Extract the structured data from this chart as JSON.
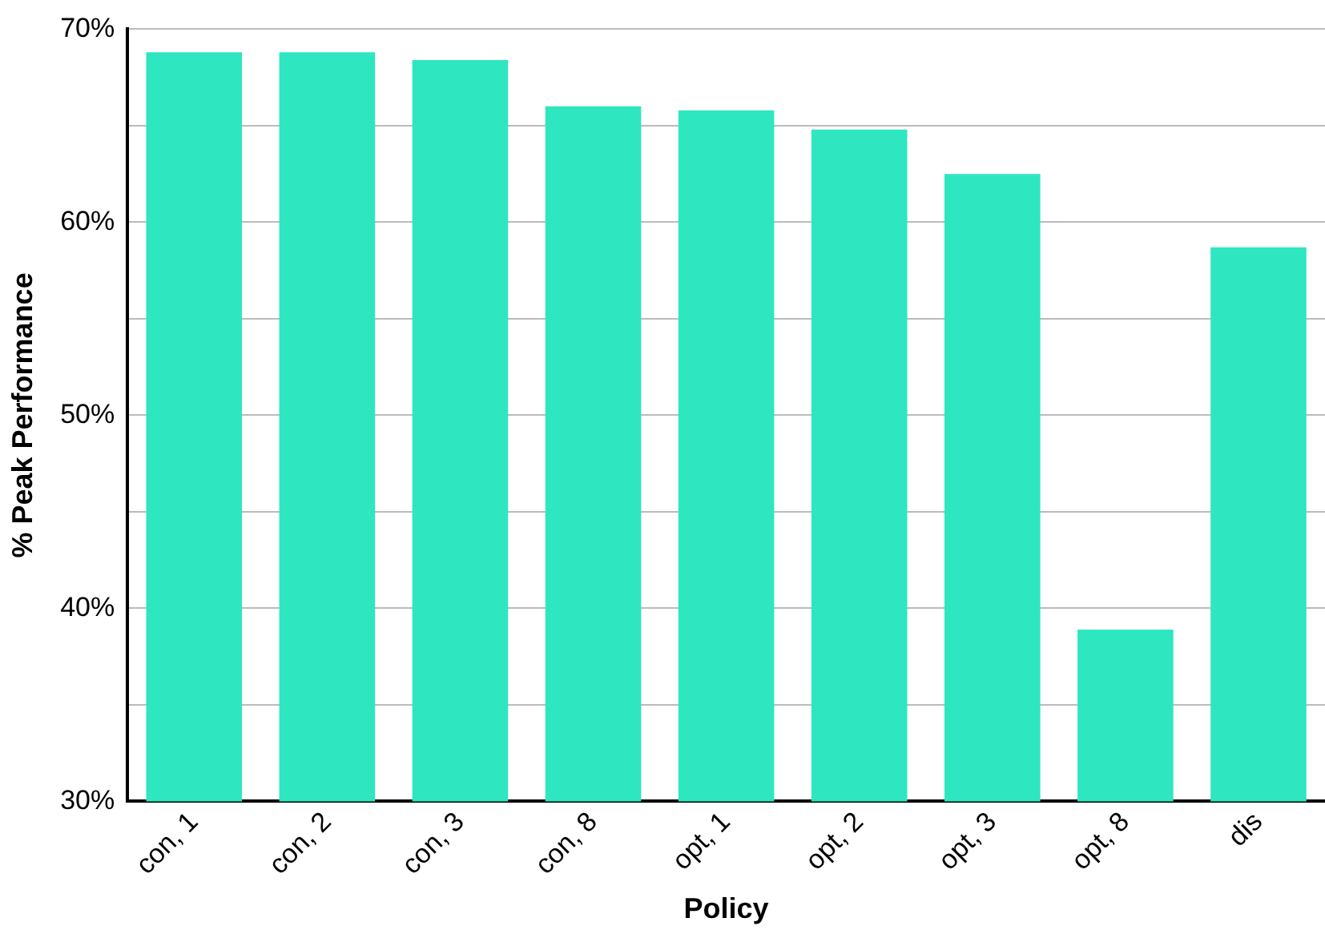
{
  "chart_data": {
    "type": "bar",
    "xlabel": "Policy",
    "ylabel": "% Peak Performance",
    "categories": [
      "con, 1",
      "con, 2",
      "con, 3",
      "con, 8",
      "opt, 1",
      "opt, 2",
      "opt, 3",
      "opt, 8",
      "dis"
    ],
    "values": [
      68.8,
      68.8,
      68.4,
      66.0,
      65.8,
      64.8,
      62.5,
      38.9,
      58.7
    ],
    "color": "#2ee6c0",
    "ylim": [
      30,
      70
    ],
    "yticks": [
      {
        "value": 30,
        "label": "30%"
      },
      {
        "value": 35,
        "label": null
      },
      {
        "value": 40,
        "label": "40%"
      },
      {
        "value": 45,
        "label": null
      },
      {
        "value": 50,
        "label": "50%"
      },
      {
        "value": 55,
        "label": null
      },
      {
        "value": 60,
        "label": "60%"
      },
      {
        "value": 65,
        "label": null
      },
      {
        "value": 70,
        "label": "70%"
      }
    ],
    "grid": "y"
  }
}
